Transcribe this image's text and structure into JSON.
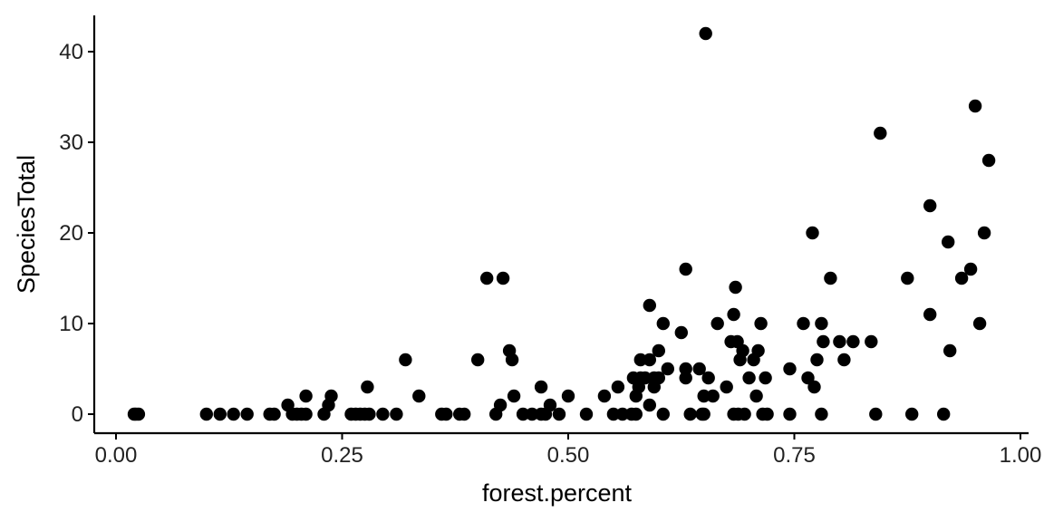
{
  "chart_data": {
    "type": "scatter",
    "title": "",
    "xlabel": "forest.percent",
    "ylabel": "SpeciesTotal",
    "xlim": [
      0,
      1
    ],
    "ylim": [
      -2,
      44
    ],
    "xticks": [
      0,
      0.25,
      0.5,
      0.75,
      1
    ],
    "xtick_labels": [
      "0.00",
      "0.25",
      "0.50",
      "0.75",
      "1.00"
    ],
    "yticks": [
      0,
      10,
      20,
      30,
      40
    ],
    "ytick_labels": [
      "0",
      "10",
      "20",
      "30",
      "40"
    ],
    "grid": false,
    "legend": "none",
    "point_color": "#000000",
    "series": [
      {
        "points": [
          [
            0.02,
            0
          ],
          [
            0.022,
            0
          ],
          [
            0.025,
            0
          ],
          [
            0.1,
            0
          ],
          [
            0.115,
            0
          ],
          [
            0.13,
            0
          ],
          [
            0.145,
            0
          ],
          [
            0.17,
            0
          ],
          [
            0.175,
            0
          ],
          [
            0.19,
            1
          ],
          [
            0.195,
            0
          ],
          [
            0.2,
            0
          ],
          [
            0.205,
            0
          ],
          [
            0.21,
            0
          ],
          [
            0.21,
            2
          ],
          [
            0.23,
            0
          ],
          [
            0.235,
            1
          ],
          [
            0.238,
            2
          ],
          [
            0.26,
            0
          ],
          [
            0.265,
            0
          ],
          [
            0.27,
            0
          ],
          [
            0.275,
            0
          ],
          [
            0.278,
            3
          ],
          [
            0.28,
            0
          ],
          [
            0.295,
            0
          ],
          [
            0.31,
            0
          ],
          [
            0.32,
            6
          ],
          [
            0.335,
            2
          ],
          [
            0.36,
            0
          ],
          [
            0.365,
            0
          ],
          [
            0.38,
            0
          ],
          [
            0.385,
            0
          ],
          [
            0.4,
            6
          ],
          [
            0.41,
            15
          ],
          [
            0.42,
            0
          ],
          [
            0.425,
            1
          ],
          [
            0.428,
            15
          ],
          [
            0.435,
            7
          ],
          [
            0.438,
            6
          ],
          [
            0.44,
            2
          ],
          [
            0.45,
            0
          ],
          [
            0.46,
            0
          ],
          [
            0.47,
            3
          ],
          [
            0.47,
            0
          ],
          [
            0.475,
            0
          ],
          [
            0.48,
            1
          ],
          [
            0.49,
            0
          ],
          [
            0.5,
            2
          ],
          [
            0.52,
            0
          ],
          [
            0.54,
            2
          ],
          [
            0.55,
            0
          ],
          [
            0.555,
            3
          ],
          [
            0.56,
            0
          ],
          [
            0.57,
            0
          ],
          [
            0.572,
            4
          ],
          [
            0.575,
            0
          ],
          [
            0.575,
            2
          ],
          [
            0.578,
            3
          ],
          [
            0.58,
            4
          ],
          [
            0.58,
            6
          ],
          [
            0.585,
            4
          ],
          [
            0.59,
            6
          ],
          [
            0.59,
            1
          ],
          [
            0.59,
            12
          ],
          [
            0.595,
            4
          ],
          [
            0.595,
            3
          ],
          [
            0.6,
            7
          ],
          [
            0.6,
            4
          ],
          [
            0.605,
            0
          ],
          [
            0.605,
            10
          ],
          [
            0.61,
            5
          ],
          [
            0.625,
            9
          ],
          [
            0.63,
            5
          ],
          [
            0.63,
            16
          ],
          [
            0.63,
            4
          ],
          [
            0.635,
            0
          ],
          [
            0.645,
            5
          ],
          [
            0.648,
            0
          ],
          [
            0.65,
            0
          ],
          [
            0.65,
            2
          ],
          [
            0.652,
            42
          ],
          [
            0.655,
            4
          ],
          [
            0.66,
            2
          ],
          [
            0.665,
            10
          ],
          [
            0.675,
            3
          ],
          [
            0.68,
            8
          ],
          [
            0.683,
            0
          ],
          [
            0.683,
            11
          ],
          [
            0.685,
            14
          ],
          [
            0.687,
            8
          ],
          [
            0.688,
            0
          ],
          [
            0.69,
            6
          ],
          [
            0.693,
            7
          ],
          [
            0.695,
            0
          ],
          [
            0.7,
            4
          ],
          [
            0.705,
            6
          ],
          [
            0.708,
            2
          ],
          [
            0.71,
            7
          ],
          [
            0.713,
            10
          ],
          [
            0.715,
            0
          ],
          [
            0.718,
            4
          ],
          [
            0.72,
            0
          ],
          [
            0.745,
            5
          ],
          [
            0.745,
            0
          ],
          [
            0.76,
            10
          ],
          [
            0.765,
            4
          ],
          [
            0.77,
            20
          ],
          [
            0.772,
            3
          ],
          [
            0.775,
            6
          ],
          [
            0.78,
            0
          ],
          [
            0.78,
            10
          ],
          [
            0.782,
            8
          ],
          [
            0.79,
            15
          ],
          [
            0.8,
            8
          ],
          [
            0.805,
            6
          ],
          [
            0.815,
            8
          ],
          [
            0.835,
            8
          ],
          [
            0.84,
            0
          ],
          [
            0.845,
            31
          ],
          [
            0.875,
            15
          ],
          [
            0.88,
            0
          ],
          [
            0.9,
            11
          ],
          [
            0.9,
            23
          ],
          [
            0.915,
            0
          ],
          [
            0.92,
            19
          ],
          [
            0.922,
            7
          ],
          [
            0.935,
            15
          ],
          [
            0.945,
            16
          ],
          [
            0.95,
            34
          ],
          [
            0.955,
            10
          ],
          [
            0.96,
            20
          ],
          [
            0.965,
            28
          ]
        ]
      }
    ]
  }
}
